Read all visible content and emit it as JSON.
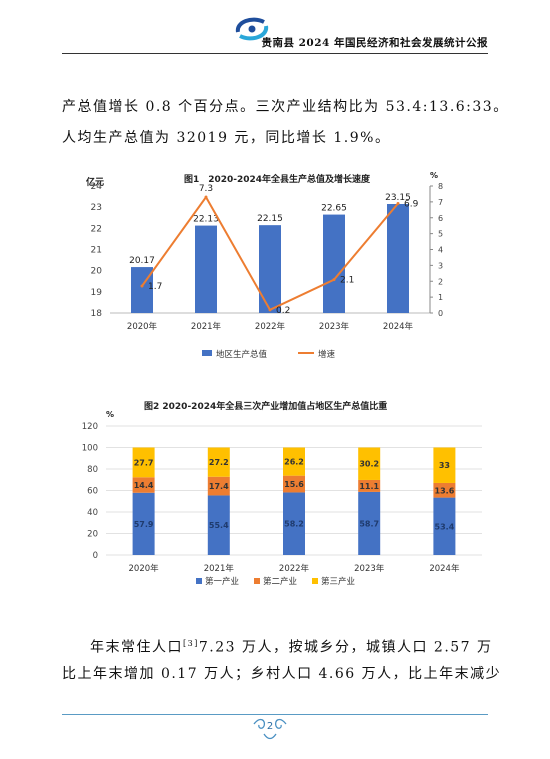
{
  "header": {
    "title": "贵南县 2024 年国民经济和社会发展统计公报"
  },
  "intro": {
    "line1": "产总值增长 0.8 个百分点。三次产业结构比为 53.4:13.6:33。",
    "line2": "人均生产总值为 32019 元，同比增长 1.9%。"
  },
  "chart_data": [
    {
      "type": "bar",
      "title": "图1　2020-2024年全县生产总值及增长速度",
      "ylabel": "亿元",
      "y2label": "%",
      "categories": [
        "2020年",
        "2021年",
        "2022年",
        "2023年",
        "2024年"
      ],
      "series": [
        {
          "name": "地区生产总值",
          "type": "bar",
          "axis": "left",
          "color": "#4472C4",
          "values": [
            20.17,
            22.13,
            22.15,
            22.65,
            23.15
          ],
          "labels": [
            "20.17",
            "22.13",
            "22.15",
            "22.65",
            "23.15"
          ]
        },
        {
          "name": "增速",
          "type": "line",
          "axis": "right",
          "color": "#ED7D31",
          "values": [
            1.7,
            7.3,
            0.2,
            2.1,
            6.9
          ],
          "labels": [
            "1.7",
            "7.3",
            "0.2",
            "2.1",
            "6.9"
          ]
        }
      ],
      "ylim": [
        18,
        24
      ],
      "yticks": [
        "18",
        "19",
        "20",
        "21",
        "22",
        "23",
        "24"
      ],
      "y2lim": [
        0,
        8
      ],
      "y2ticks": [
        "0",
        "1",
        "2",
        "3",
        "4",
        "5",
        "6",
        "7",
        "8"
      ],
      "legend_position": "bottom",
      "grid": false
    },
    {
      "type": "bar",
      "stacked": true,
      "title": "图2 2020-2024年全县三次产业增加值占地区生产总值比重",
      "ylabel": "%",
      "categories": [
        "2020年",
        "2021年",
        "2022年",
        "2023年",
        "2024年"
      ],
      "series": [
        {
          "name": "第一产业",
          "color": "#4472C4",
          "values": [
            57.9,
            55.4,
            58.2,
            58.7,
            53.4
          ],
          "labels": [
            "57.9",
            "55.4",
            "58.2",
            "58.7",
            "53.4"
          ]
        },
        {
          "name": "第二产业",
          "color": "#ED7D31",
          "values": [
            14.4,
            17.4,
            15.6,
            11.1,
            13.6
          ],
          "labels": [
            "14.4",
            "17.4",
            "15.6",
            "11.1",
            "13.6"
          ]
        },
        {
          "name": "第三产业",
          "color": "#FFC000",
          "values": [
            27.7,
            27.2,
            26.2,
            30.2,
            33
          ],
          "labels": [
            "27.7",
            "27.2",
            "26.2",
            "30.2",
            "33"
          ]
        }
      ],
      "ylim": [
        0,
        120
      ],
      "yticks": [
        "0",
        "20",
        "40",
        "60",
        "80",
        "100",
        "120"
      ],
      "legend_position": "bottom",
      "grid": true
    }
  ],
  "population": {
    "line1_pre": "年末常住人口",
    "note": "[3]",
    "line1_post": "7.23 万人，按城乡分，城镇人口 2.57 万",
    "line2": "比上年末增加 0.17 万人；乡村人口 4.66 万人，比上年末减少"
  },
  "footer": {
    "page": "2"
  }
}
